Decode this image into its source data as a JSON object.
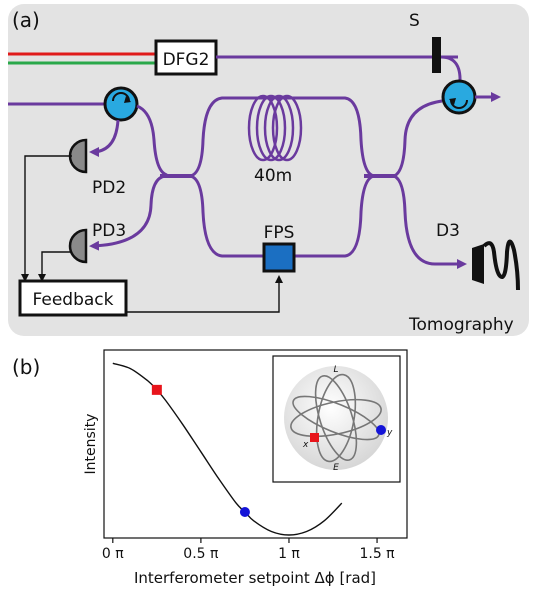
{
  "panel_a": {
    "label": "(a)",
    "components": {
      "dfg2": "DFG2",
      "shutter": "S",
      "fiber": "40m",
      "pd2": "PD2",
      "pd3": "PD3",
      "fps": "FPS",
      "d3": "D3",
      "feedback": "Feedback",
      "tomography": "Tomography"
    }
  },
  "panel_b": {
    "label": "(b)",
    "ylabel": "Intensity",
    "xlabel": "Interferometer setpoint Δϕ [rad]",
    "xticks": [
      "0 π",
      "0.5 π",
      "1 π",
      "1.5 π"
    ],
    "inset": {
      "top": "L",
      "bottom": "E",
      "left": "x",
      "right": "y"
    }
  },
  "chart_data": {
    "type": "line",
    "xlabel": "Interferometer setpoint Δϕ [rad]",
    "ylabel": "Intensity",
    "xlim": [
      -0.05,
      1.67
    ],
    "ylim": [
      0,
      1
    ],
    "curve": {
      "x": [
        0.0,
        0.1,
        0.2,
        0.25,
        0.3,
        0.4,
        0.5,
        0.6,
        0.7,
        0.75,
        0.8,
        0.9,
        1.0,
        1.1,
        1.2,
        1.3
      ],
      "y": [
        0.97,
        0.94,
        0.87,
        0.82,
        0.76,
        0.62,
        0.47,
        0.32,
        0.18,
        0.13,
        0.08,
        0.02,
        0.0,
        0.02,
        0.08,
        0.18
      ]
    },
    "markers": [
      {
        "x": 0.25,
        "y": 0.82,
        "shape": "square",
        "color": "#e8141b"
      },
      {
        "x": 0.75,
        "y": 0.13,
        "shape": "circle",
        "color": "#1414d8"
      }
    ]
  },
  "colors": {
    "fiber": "#6a3a9e",
    "red_beam": "#e01b1b",
    "green_beam": "#2aa84a",
    "circulator": "#29a9e0",
    "fps_box": "#1b6fc2",
    "detector": "#8a8a8a",
    "panel_bg": "#e3e3e3"
  }
}
